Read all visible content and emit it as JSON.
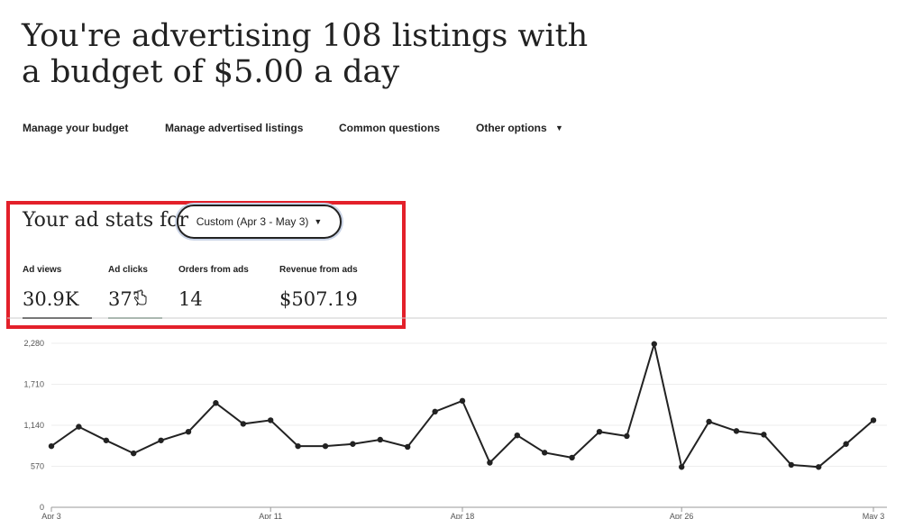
{
  "headline": "You're advertising 108 listings with a budget of $5.00 a day",
  "nav": {
    "items": [
      {
        "label": "Manage your budget"
      },
      {
        "label": "Manage advertised listings"
      },
      {
        "label": "Common questions"
      },
      {
        "label": "Other options",
        "icon": "caret-down-icon"
      }
    ]
  },
  "stats": {
    "heading": "Your ad stats for",
    "range_label": "Custom (Apr 3 - May 3)",
    "metrics": [
      {
        "label": "Ad views",
        "value": "30.9K"
      },
      {
        "label": "Ad clicks",
        "value": "377"
      },
      {
        "label": "Orders from ads",
        "value": "14"
      },
      {
        "label": "Revenue from ads",
        "value": "$507.19"
      }
    ]
  },
  "colors": {
    "highlight": "#e3202a",
    "line": "#222222",
    "grid": "#eeeeee"
  },
  "chart_data": {
    "type": "line",
    "y_ticks": [
      "2,280",
      "1,710",
      "1,140",
      "570",
      "0"
    ],
    "y_tick_values": [
      2280,
      1710,
      1140,
      570,
      0
    ],
    "ylim": [
      0,
      2280
    ],
    "x_tick_labels": [
      "Apr 3",
      "Apr 11",
      "Apr 18",
      "Apr 26",
      "May 3"
    ],
    "x_tick_index": [
      0,
      8,
      15,
      23,
      30
    ],
    "grid": true,
    "series": [
      {
        "values": [
          850,
          1120,
          930,
          750,
          930,
          1050,
          1450,
          1160,
          1210,
          850,
          850,
          880,
          940,
          840,
          1330,
          1480,
          620,
          1000,
          760,
          690,
          1050,
          990,
          2270,
          560,
          1190,
          1060,
          1010,
          590,
          560,
          880,
          1210
        ]
      }
    ]
  }
}
